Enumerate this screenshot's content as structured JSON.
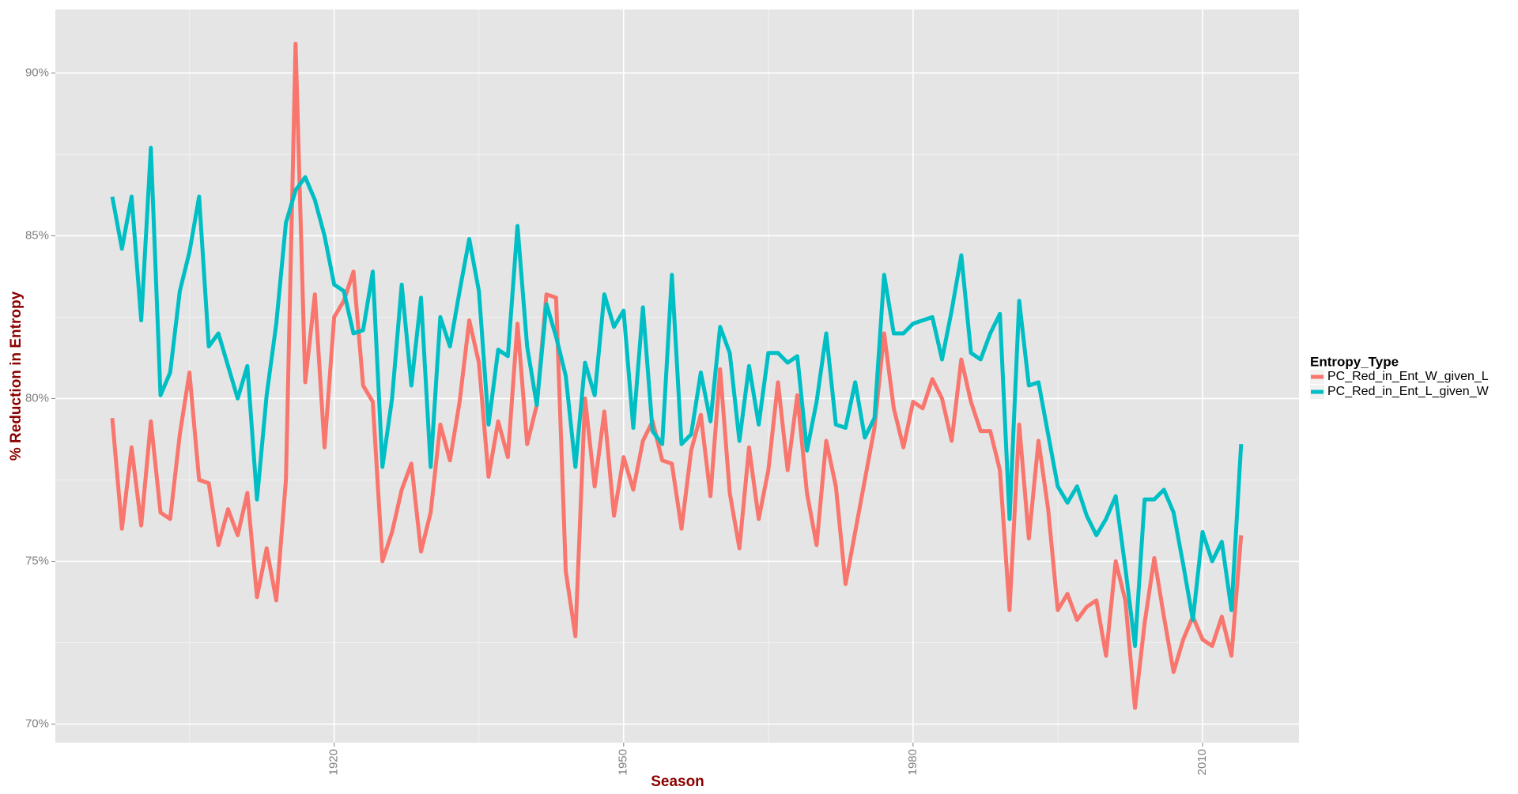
{
  "chart_data": {
    "type": "line",
    "xlabel": "Season",
    "ylabel": "% Reduction in Entropy",
    "legend_title": "Entropy_Type",
    "legend": "right",
    "grid": true,
    "minor_grid": true,
    "xlim": [
      1891.1,
      2020.0
    ],
    "xticks": [
      1920,
      1950,
      1980,
      2010
    ],
    "ylim": [
      69.43,
      91.95
    ],
    "yticks": [
      {
        "value": 70,
        "label": "70%"
      },
      {
        "value": 75,
        "label": "75%"
      },
      {
        "value": 80,
        "label": "80%"
      },
      {
        "value": 85,
        "label": "85%"
      },
      {
        "value": 90,
        "label": "90%"
      }
    ],
    "x": [
      1897,
      1898,
      1899,
      1900,
      1901,
      1902,
      1903,
      1904,
      1905,
      1906,
      1907,
      1908,
      1909,
      1910,
      1911,
      1912,
      1913,
      1914,
      1915,
      1916,
      1917,
      1918,
      1919,
      1920,
      1921,
      1922,
      1923,
      1924,
      1925,
      1926,
      1927,
      1928,
      1929,
      1930,
      1931,
      1932,
      1933,
      1934,
      1935,
      1936,
      1937,
      1938,
      1939,
      1940,
      1941,
      1942,
      1943,
      1944,
      1945,
      1946,
      1947,
      1948,
      1949,
      1950,
      1951,
      1952,
      1953,
      1954,
      1955,
      1956,
      1957,
      1958,
      1959,
      1960,
      1961,
      1962,
      1963,
      1964,
      1965,
      1966,
      1967,
      1968,
      1969,
      1970,
      1971,
      1972,
      1973,
      1974,
      1975,
      1976,
      1977,
      1978,
      1979,
      1980,
      1981,
      1982,
      1983,
      1984,
      1985,
      1986,
      1987,
      1988,
      1989,
      1990,
      1991,
      1992,
      1993,
      1994,
      1995,
      1996,
      1997,
      1998,
      1999,
      2000,
      2001,
      2002,
      2003,
      2004,
      2005,
      2006,
      2007,
      2008,
      2009,
      2010,
      2011,
      2012,
      2013,
      2014
    ],
    "series": [
      {
        "name": "PC_Red_in_Ent_W_given_L",
        "color": "#F8766D",
        "values": [
          79.4,
          76.0,
          78.5,
          76.1,
          79.3,
          76.5,
          76.3,
          78.9,
          80.8,
          77.5,
          77.4,
          75.5,
          76.6,
          75.8,
          77.1,
          73.9,
          75.4,
          73.8,
          77.5,
          90.9,
          80.5,
          83.2,
          78.5,
          82.5,
          83.0,
          83.9,
          80.4,
          79.9,
          75.0,
          75.9,
          77.2,
          78.0,
          75.3,
          76.5,
          79.2,
          78.1,
          79.9,
          82.4,
          81.1,
          77.6,
          79.3,
          78.2,
          82.3,
          78.6,
          79.8,
          83.2,
          83.1,
          74.7,
          72.7,
          80.0,
          77.3,
          79.6,
          76.4,
          78.2,
          77.2,
          78.7,
          79.3,
          78.1,
          78.0,
          76.0,
          78.4,
          79.5,
          77.0,
          80.9,
          77.1,
          75.4,
          78.5,
          76.3,
          77.8,
          80.5,
          77.8,
          80.1,
          77.1,
          75.5,
          78.7,
          77.3,
          74.3,
          75.9,
          77.5,
          79.1,
          82.0,
          79.7,
          78.5,
          79.9,
          79.7,
          80.6,
          80.0,
          78.7,
          81.2,
          79.9,
          79.0,
          79.0,
          77.8,
          73.5,
          79.2,
          75.7,
          78.7,
          76.6,
          73.5,
          74.0,
          73.2,
          73.6,
          73.8,
          72.1,
          75.0,
          73.8,
          70.5,
          73.1,
          75.1,
          73.3,
          71.6,
          72.6,
          73.3,
          72.6,
          72.4,
          73.3,
          72.1,
          75.8
        ]
      },
      {
        "name": "PC_Red_in_Ent_L_given_W",
        "color": "#00BFC4",
        "values": [
          86.2,
          84.6,
          86.2,
          82.4,
          87.7,
          80.1,
          80.8,
          83.3,
          84.5,
          86.2,
          81.6,
          82.0,
          81.0,
          80.0,
          81.0,
          76.9,
          80.1,
          82.3,
          85.4,
          86.4,
          86.8,
          86.1,
          85.0,
          83.5,
          83.3,
          82.0,
          82.1,
          83.9,
          77.9,
          80.0,
          83.5,
          80.4,
          83.1,
          77.9,
          82.5,
          81.6,
          83.3,
          84.9,
          83.3,
          79.2,
          81.5,
          81.3,
          85.3,
          81.6,
          79.8,
          82.9,
          81.9,
          80.7,
          77.9,
          81.1,
          80.1,
          83.2,
          82.2,
          82.7,
          79.1,
          82.8,
          79.0,
          78.6,
          83.8,
          78.6,
          78.9,
          80.8,
          79.3,
          82.2,
          81.4,
          78.7,
          81.0,
          79.2,
          81.4,
          81.4,
          81.1,
          81.3,
          78.4,
          79.9,
          82.0,
          79.2,
          79.1,
          80.5,
          78.8,
          79.4,
          83.8,
          82.0,
          82.0,
          82.3,
          82.4,
          82.5,
          81.2,
          82.7,
          84.4,
          81.4,
          81.2,
          82.0,
          82.6,
          76.3,
          83.0,
          80.4,
          80.5,
          78.9,
          77.3,
          76.8,
          77.3,
          76.4,
          75.8,
          76.3,
          77.0,
          74.8,
          72.4,
          76.9,
          76.9,
          77.2,
          76.5,
          74.9,
          73.2,
          75.9,
          75.0,
          75.6,
          73.5,
          78.6
        ]
      }
    ]
  }
}
